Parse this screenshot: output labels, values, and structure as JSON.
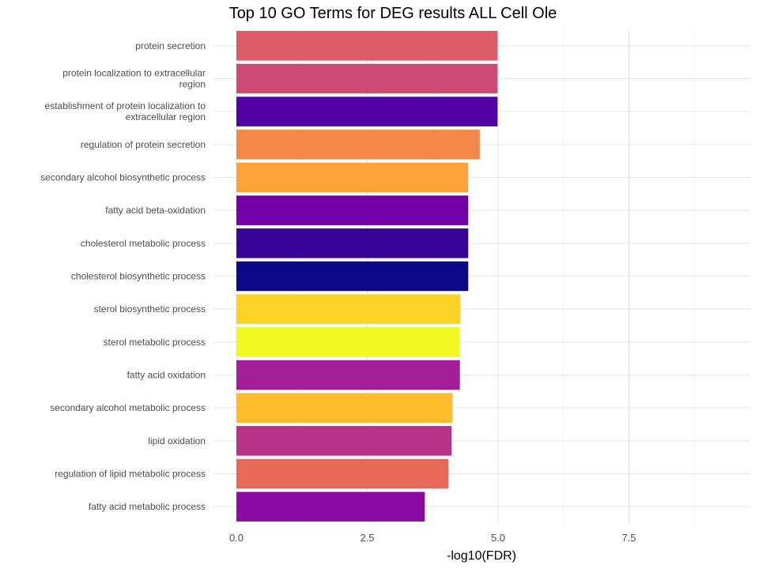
{
  "chart_data": {
    "type": "bar",
    "orientation": "horizontal",
    "title": "Top 10 GO Terms for DEG results ALL Cell Ole",
    "xlabel": "-log10(FDR)",
    "ylabel": "",
    "xlim": [
      0,
      9.75
    ],
    "x_ticks": [
      "0.0",
      "2.5",
      "5.0",
      "7.5"
    ],
    "grid": true,
    "legend": "none",
    "categories": [
      [
        "protein secretion"
      ],
      [
        "protein localization to extracellular",
        "region"
      ],
      [
        "establishment of protein localization to",
        "extracellular region"
      ],
      [
        "regulation of protein secretion"
      ],
      [
        "secondary alcohol biosynthetic process"
      ],
      [
        "fatty acid beta-oxidation"
      ],
      [
        "cholesterol metabolic process"
      ],
      [
        "cholesterol biosynthetic process"
      ],
      [
        "sterol biosynthetic process"
      ],
      [
        "sterol metabolic process"
      ],
      [
        "fatty acid oxidation"
      ],
      [
        "secondary alcohol metabolic process"
      ],
      [
        "lipid oxidation"
      ],
      [
        "regulation of lipid metabolic process"
      ],
      [
        "fatty acid metabolic process"
      ]
    ],
    "values": [
      4.99,
      4.99,
      4.99,
      4.65,
      4.43,
      4.43,
      4.43,
      4.43,
      4.28,
      4.27,
      4.27,
      4.13,
      4.11,
      4.05,
      3.6
    ],
    "colors": [
      "#DB5C68",
      "#CE4A76",
      "#5302A3",
      "#F48849",
      "#FBA238",
      "#7301A8",
      "#3A049A",
      "#0D0887",
      "#FCD225",
      "#F0F921",
      "#A41E9A",
      "#FEBD2A",
      "#B83289",
      "#E8685A",
      "#8C0BA5"
    ]
  }
}
